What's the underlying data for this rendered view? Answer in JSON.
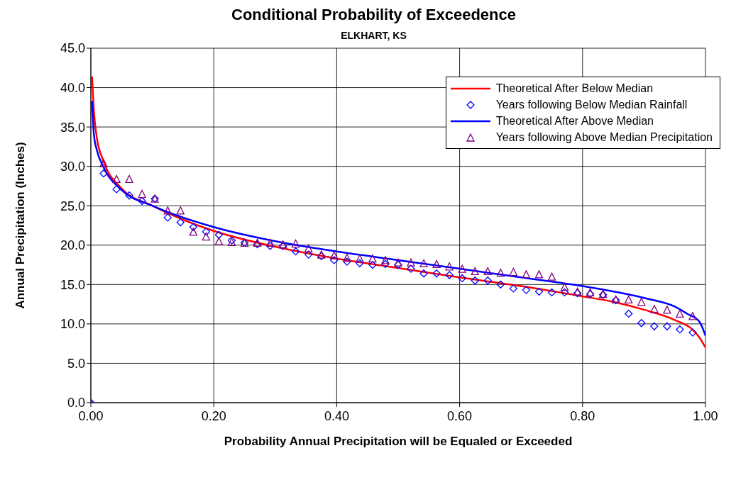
{
  "chart_data": {
    "type": "line",
    "title": "Conditional Probability of Exceedence",
    "subtitle": "ELKHART, KS",
    "xlabel": "Probability Annual Precipitation will be Equaled or Exceeded",
    "ylabel": "Annual Precipitation (Inches)",
    "xlim": [
      0,
      1
    ],
    "ylim": [
      0,
      45
    ],
    "xticks": [
      {
        "value": 0,
        "label": "0.00"
      },
      {
        "value": 0.2,
        "label": "0.20"
      },
      {
        "value": 0.4,
        "label": "0.40"
      },
      {
        "value": 0.6,
        "label": "0.60"
      },
      {
        "value": 0.8,
        "label": "0.80"
      },
      {
        "value": 1,
        "label": "1.00"
      }
    ],
    "yticks": [
      {
        "value": 0,
        "label": "0.0"
      },
      {
        "value": 5,
        "label": "5.0"
      },
      {
        "value": 10,
        "label": "10.0"
      },
      {
        "value": 15,
        "label": "15.0"
      },
      {
        "value": 20,
        "label": "20.0"
      },
      {
        "value": 25,
        "label": "25.0"
      },
      {
        "value": 30,
        "label": "30.0"
      },
      {
        "value": 35,
        "label": "35.0"
      },
      {
        "value": 40,
        "label": "40.0"
      },
      {
        "value": 45,
        "label": "45.0"
      }
    ],
    "grid": true,
    "legend": "top right",
    "line_style": "solid",
    "series": [
      {
        "name": "Theoretical After Below Median",
        "marker": "none",
        "color": "#ff0000",
        "x": [
          0.002,
          0.005,
          0.01,
          0.02,
          0.05,
          0.1,
          0.2,
          0.3,
          0.4,
          0.5,
          0.6,
          0.7,
          0.8,
          0.85,
          0.9,
          0.95,
          0.98,
          0.99,
          1.0
        ],
        "values": [
          41.4,
          37,
          33.5,
          30.8,
          27.2,
          25.0,
          21.8,
          19.8,
          18.3,
          17.1,
          15.9,
          14.8,
          13.5,
          12.8,
          11.8,
          10.5,
          9.2,
          8.3,
          7.0
        ]
      },
      {
        "name": "Years following Below Median Rainfall",
        "type": "scatter",
        "marker": "diamond",
        "color": "#0000ff",
        "x": [
          0,
          0.0208,
          0.0417,
          0.0625,
          0.0833,
          0.1042,
          0.125,
          0.1458,
          0.1667,
          0.1875,
          0.2083,
          0.2292,
          0.25,
          0.2708,
          0.2917,
          0.3125,
          0.3333,
          0.3542,
          0.375,
          0.3958,
          0.4167,
          0.4375,
          0.4583,
          0.4792,
          0.5,
          0.5208,
          0.5417,
          0.5625,
          0.5833,
          0.6042,
          0.625,
          0.6458,
          0.6667,
          0.6875,
          0.7083,
          0.7292,
          0.75,
          0.7708,
          0.7917,
          0.8125,
          0.8333,
          0.8542,
          0.875,
          0.8958,
          0.9167,
          0.9375,
          0.9583,
          0.9792
        ],
        "values": [
          0,
          29.1,
          27.1,
          26.3,
          25.6,
          25.9,
          23.5,
          22.9,
          22.3,
          21.7,
          21.3,
          20.6,
          20.3,
          20.1,
          19.9,
          19.9,
          19.2,
          18.8,
          18.6,
          18.1,
          17.9,
          17.7,
          17.5,
          17.6,
          17.5,
          17.0,
          16.4,
          16.4,
          16.2,
          15.8,
          15.5,
          15.5,
          15.0,
          14.5,
          14.3,
          14.1,
          14.0,
          14.0,
          13.9,
          13.8,
          13.7,
          13.0,
          11.3,
          10.1,
          9.7,
          9.7,
          9.3,
          8.9
        ]
      },
      {
        "name": "Theoretical After Above Median",
        "marker": "none",
        "color": "#0000ff",
        "x": [
          0.002,
          0.005,
          0.01,
          0.02,
          0.05,
          0.1,
          0.2,
          0.3,
          0.4,
          0.5,
          0.6,
          0.7,
          0.8,
          0.9,
          0.95,
          0.97,
          0.99,
          1.0
        ],
        "values": [
          38.3,
          34,
          32,
          30,
          27,
          25.0,
          22.3,
          20.5,
          19.2,
          18.1,
          17.0,
          15.9,
          14.8,
          13.3,
          12.2,
          11.3,
          10.3,
          8.5
        ]
      },
      {
        "name": "Years following Above Median Precipitation",
        "type": "scatter",
        "marker": "triangle",
        "color": "#800080",
        "x": [
          0,
          0.0208,
          0.0417,
          0.0625,
          0.0833,
          0.1042,
          0.125,
          0.1458,
          0.1667,
          0.1875,
          0.2083,
          0.2292,
          0.25,
          0.2708,
          0.2917,
          0.3125,
          0.3333,
          0.3542,
          0.375,
          0.3958,
          0.4167,
          0.4375,
          0.4583,
          0.4792,
          0.5,
          0.5208,
          0.5417,
          0.5625,
          0.5833,
          0.6042,
          0.625,
          0.6458,
          0.6667,
          0.6875,
          0.7083,
          0.7292,
          0.75,
          0.7708,
          0.7917,
          0.8125,
          0.8333,
          0.8542,
          0.875,
          0.8958,
          0.9167,
          0.9375,
          0.9583,
          0.9792
        ],
        "values": [
          0,
          30.4,
          28.4,
          28.4,
          26.5,
          25.9,
          24.4,
          24.4,
          21.7,
          21.1,
          20.5,
          20.4,
          20.3,
          20.3,
          20.3,
          20.1,
          20.2,
          19.6,
          18.8,
          18.7,
          18.4,
          18.3,
          18.3,
          18.1,
          17.8,
          17.8,
          17.7,
          17.6,
          17.3,
          17.0,
          16.7,
          16.7,
          16.5,
          16.6,
          16.3,
          16.3,
          16.0,
          14.7,
          14.1,
          14.0,
          13.8,
          13.1,
          13.1,
          12.8,
          11.9,
          11.8,
          11.3,
          11.0
        ]
      }
    ]
  }
}
